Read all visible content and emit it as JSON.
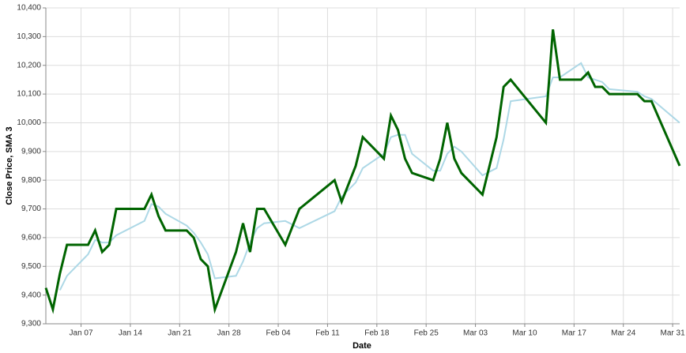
{
  "chart_data": {
    "type": "line",
    "x_label": "Date",
    "y_label": "Close Price, SMA 3",
    "x": [
      "Jan 02",
      "Jan 03",
      "Jan 04",
      "Jan 05",
      "Jan 08",
      "Jan 09",
      "Jan 10",
      "Jan 11",
      "Jan 12",
      "Jan 16",
      "Jan 17",
      "Jan 18",
      "Jan 19",
      "Jan 22",
      "Jan 23",
      "Jan 24",
      "Jan 25",
      "Jan 26",
      "Jan 29",
      "Jan 30",
      "Jan 31",
      "Feb 01",
      "Feb 02",
      "Feb 05",
      "Feb 07",
      "Feb 12",
      "Feb 13",
      "Feb 15",
      "Feb 16",
      "Feb 19",
      "Feb 20",
      "Feb 21",
      "Feb 22",
      "Feb 23",
      "Feb 26",
      "Feb 27",
      "Feb 28",
      "Feb 29",
      "Mar 01",
      "Mar 04",
      "Mar 06",
      "Mar 07",
      "Mar 08",
      "Mar 13",
      "Mar 14",
      "Mar 15",
      "Mar 18",
      "Mar 19",
      "Mar 20",
      "Mar 21",
      "Mar 22",
      "Mar 26",
      "Mar 27",
      "Mar 28",
      "Apr 01"
    ],
    "series": [
      {
        "name": "Close Price",
        "color": "#006400",
        "width": 3,
        "values": [
          9425,
          9350,
          9475,
          9575,
          9575,
          9625,
          9550,
          9575,
          9700,
          9700,
          9750,
          9675,
          9625,
          9625,
          9600,
          9525,
          9500,
          9350,
          9550,
          9650,
          9550,
          9700,
          9700,
          9575,
          9700,
          9800,
          9725,
          9850,
          9950,
          9875,
          10025,
          9975,
          9875,
          9825,
          9800,
          9875,
          10000,
          9875,
          9825,
          9750,
          9950,
          10125,
          10150,
          10000,
          10325,
          10150,
          10150,
          10175,
          10125,
          10125,
          10100,
          10100,
          10075,
          10075,
          9850
        ]
      },
      {
        "name": "SMA 3",
        "color": "#add8e6",
        "width": 2,
        "values": [
          null,
          null,
          9417,
          9467,
          9542,
          9592,
          9583,
          9583,
          9608,
          9658,
          9717,
          9708,
          9683,
          9642,
          9617,
          9583,
          9542,
          9458,
          9467,
          9517,
          9583,
          9633,
          9650,
          9658,
          9633,
          9692,
          9742,
          9792,
          9842,
          9892,
          9950,
          9958,
          9958,
          9892,
          9833,
          9833,
          9892,
          9917,
          9900,
          9817,
          9842,
          9942,
          10075,
          10092,
          10158,
          10158,
          10208,
          10158,
          10150,
          10142,
          10117,
          10108,
          10092,
          10083,
          10000
        ]
      }
    ],
    "xlim": [
      "Jan 02",
      "Apr 01"
    ],
    "xticks": [
      "Jan 07",
      "Jan 14",
      "Jan 21",
      "Jan 28",
      "Feb 04",
      "Feb 11",
      "Feb 18",
      "Feb 25",
      "Mar 03",
      "Mar 10",
      "Mar 17",
      "Mar 24",
      "Mar 31"
    ],
    "ylim": [
      9300,
      10400
    ],
    "yticks": [
      {
        "value": 9300,
        "label": "9,300"
      },
      {
        "value": 9400,
        "label": "9,400"
      },
      {
        "value": 9500,
        "label": "9,500"
      },
      {
        "value": 9600,
        "label": "9,600"
      },
      {
        "value": 9700,
        "label": "9,700"
      },
      {
        "value": 9800,
        "label": "9,800"
      },
      {
        "value": 9900,
        "label": "9,900"
      },
      {
        "value": 10000,
        "label": "10,000"
      },
      {
        "value": 10100,
        "label": "10,100"
      },
      {
        "value": 10200,
        "label": "10,200"
      },
      {
        "value": 10300,
        "label": "10,300"
      },
      {
        "value": 10400,
        "label": "10,400"
      }
    ],
    "grid": true
  }
}
